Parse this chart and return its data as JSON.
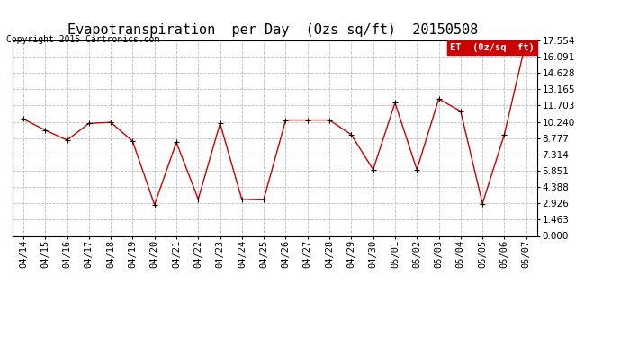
{
  "title": "Evapotranspiration  per Day  (Ozs sq/ft)  20150508",
  "copyright": "Copyright 2015 Cartronics.com",
  "legend_label": "ET  (0z/sq  ft)",
  "x_labels": [
    "04/14",
    "04/15",
    "04/16",
    "04/17",
    "04/18",
    "04/19",
    "04/20",
    "04/21",
    "04/22",
    "04/23",
    "04/24",
    "04/25",
    "04/26",
    "04/27",
    "04/28",
    "04/29",
    "04/30",
    "05/01",
    "05/02",
    "05/03",
    "05/04",
    "05/05",
    "05/06",
    "05/07"
  ],
  "y_values": [
    10.5,
    9.5,
    8.6,
    10.1,
    10.2,
    8.5,
    2.8,
    8.4,
    3.3,
    10.1,
    3.25,
    3.3,
    10.4,
    10.4,
    10.4,
    9.1,
    5.95,
    11.95,
    5.95,
    12.3,
    11.2,
    2.9,
    9.1,
    17.554
  ],
  "line_color": "#cc0000",
  "marker_color": "#000000",
  "y_ticks": [
    0.0,
    1.463,
    2.926,
    4.388,
    5.851,
    7.314,
    8.777,
    10.24,
    11.703,
    13.165,
    14.628,
    16.091,
    17.554
  ],
  "y_min": 0.0,
  "y_max": 17.554,
  "legend_bg": "#cc0000",
  "legend_text_color": "#ffffff",
  "grid_color": "#bbbbbb",
  "bg_color": "#ffffff",
  "title_fontsize": 11,
  "copyright_fontsize": 7,
  "tick_fontsize": 7.5
}
